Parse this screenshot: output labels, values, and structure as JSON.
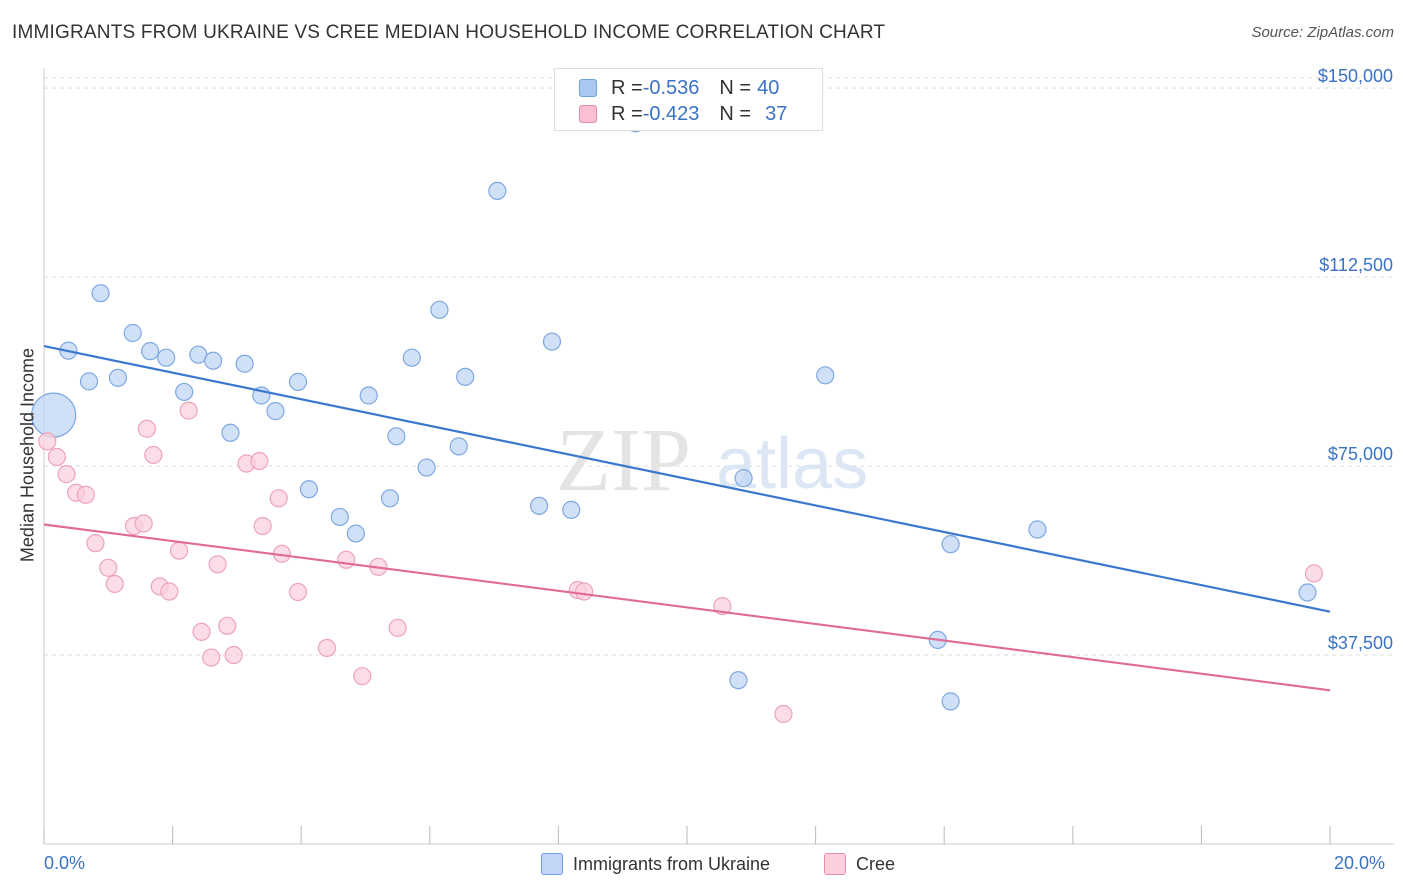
{
  "title": "IMMIGRANTS FROM UKRAINE VS CREE MEDIAN HOUSEHOLD INCOME CORRELATION CHART",
  "source": "Source: ZipAtlas.com",
  "watermark": {
    "zip": "ZIP",
    "atlas": "atlas"
  },
  "legend_top": {
    "rows": [
      {
        "r_label": "R = ",
        "r_value": "-0.536",
        "n_label": "N = ",
        "n_value": "40",
        "color": "#a8c8f0",
        "border": "#6d9ee0"
      },
      {
        "r_label": "R = ",
        "r_value": "-0.423",
        "n_label": "N = ",
        "n_value": "37",
        "color": "#f8c0d0",
        "border": "#e890aa"
      }
    ]
  },
  "legend_bottom": [
    {
      "label": "Immigrants from Ukraine",
      "color": "#c0d6f4",
      "border": "#6d9ee0"
    },
    {
      "label": "Cree",
      "color": "#fbd0dc",
      "border": "#e890aa"
    }
  ],
  "chart_data": {
    "type": "scatter",
    "xlabel": "",
    "ylabel": "Median Household Income",
    "xlim": [
      0,
      20
    ],
    "ylim": [
      0,
      152000
    ],
    "x_tick_labels": [
      "0.0%",
      "20.0%"
    ],
    "y_ticks": [
      37500,
      75000,
      112500,
      150000
    ],
    "y_tick_labels": [
      "$37,500",
      "$75,000",
      "$112,500",
      "$150,000"
    ],
    "grid": true,
    "series": [
      {
        "name": "Immigrants from Ukraine",
        "color": "#3a78d0",
        "point_fill": "#c0d6f4",
        "point_stroke": "#7ea8e2",
        "trend": {
          "x": [
            0.0,
            20.0
          ],
          "y": [
            98800,
            46100
          ]
        },
        "points": [
          {
            "x": 0.15,
            "y": 85100,
            "big": true
          },
          {
            "x": 0.38,
            "y": 97900
          },
          {
            "x": 0.7,
            "y": 91800
          },
          {
            "x": 0.88,
            "y": 109300
          },
          {
            "x": 1.15,
            "y": 92500
          },
          {
            "x": 1.38,
            "y": 101400
          },
          {
            "x": 1.65,
            "y": 97800
          },
          {
            "x": 1.9,
            "y": 96500
          },
          {
            "x": 2.18,
            "y": 89700
          },
          {
            "x": 2.4,
            "y": 97100
          },
          {
            "x": 2.63,
            "y": 95900
          },
          {
            "x": 2.9,
            "y": 81600
          },
          {
            "x": 3.12,
            "y": 95300
          },
          {
            "x": 3.38,
            "y": 89000
          },
          {
            "x": 3.6,
            "y": 85900
          },
          {
            "x": 3.95,
            "y": 91700
          },
          {
            "x": 4.12,
            "y": 70400
          },
          {
            "x": 4.6,
            "y": 64900
          },
          {
            "x": 4.85,
            "y": 61600
          },
          {
            "x": 5.05,
            "y": 89000
          },
          {
            "x": 5.38,
            "y": 68600
          },
          {
            "x": 5.48,
            "y": 80900
          },
          {
            "x": 5.72,
            "y": 96500
          },
          {
            "x": 5.95,
            "y": 74700
          },
          {
            "x": 6.15,
            "y": 106000
          },
          {
            "x": 6.45,
            "y": 78900
          },
          {
            "x": 6.55,
            "y": 92700
          },
          {
            "x": 7.05,
            "y": 129600
          },
          {
            "x": 7.7,
            "y": 67100
          },
          {
            "x": 7.9,
            "y": 99700
          },
          {
            "x": 8.2,
            "y": 66300
          },
          {
            "x": 9.2,
            "y": 143000
          },
          {
            "x": 10.8,
            "y": 32500
          },
          {
            "x": 10.88,
            "y": 72600
          },
          {
            "x": 12.15,
            "y": 93000
          },
          {
            "x": 13.9,
            "y": 40500
          },
          {
            "x": 14.1,
            "y": 59500
          },
          {
            "x": 14.1,
            "y": 28300
          },
          {
            "x": 15.45,
            "y": 62400
          },
          {
            "x": 19.65,
            "y": 49900
          }
        ]
      },
      {
        "name": "Cree",
        "color": "#e06b95",
        "point_fill": "#fbd0dc",
        "point_stroke": "#eda3bb",
        "trend": {
          "x": [
            0.0,
            20.0
          ],
          "y": [
            63400,
            30500
          ]
        },
        "points": [
          {
            "x": 0.05,
            "y": 79900
          },
          {
            "x": 0.2,
            "y": 76800
          },
          {
            "x": 0.35,
            "y": 73400
          },
          {
            "x": 0.5,
            "y": 69700
          },
          {
            "x": 0.65,
            "y": 69300
          },
          {
            "x": 0.8,
            "y": 59700
          },
          {
            "x": 1.0,
            "y": 54800
          },
          {
            "x": 1.1,
            "y": 51600
          },
          {
            "x": 1.4,
            "y": 63100
          },
          {
            "x": 1.55,
            "y": 63600
          },
          {
            "x": 1.6,
            "y": 82400
          },
          {
            "x": 1.7,
            "y": 77200
          },
          {
            "x": 1.8,
            "y": 51100
          },
          {
            "x": 1.95,
            "y": 50100
          },
          {
            "x": 2.1,
            "y": 58200
          },
          {
            "x": 2.25,
            "y": 86000
          },
          {
            "x": 2.45,
            "y": 42100
          },
          {
            "x": 2.6,
            "y": 37000
          },
          {
            "x": 2.7,
            "y": 55500
          },
          {
            "x": 2.85,
            "y": 43300
          },
          {
            "x": 2.95,
            "y": 37500
          },
          {
            "x": 3.15,
            "y": 75500
          },
          {
            "x": 3.35,
            "y": 76000
          },
          {
            "x": 3.4,
            "y": 63100
          },
          {
            "x": 3.65,
            "y": 68600
          },
          {
            "x": 3.7,
            "y": 57600
          },
          {
            "x": 3.95,
            "y": 50000
          },
          {
            "x": 4.4,
            "y": 38900
          },
          {
            "x": 4.7,
            "y": 56400
          },
          {
            "x": 4.95,
            "y": 33300
          },
          {
            "x": 5.2,
            "y": 55000
          },
          {
            "x": 5.5,
            "y": 42900
          },
          {
            "x": 8.3,
            "y": 50400
          },
          {
            "x": 8.4,
            "y": 50100
          },
          {
            "x": 10.55,
            "y": 47200
          },
          {
            "x": 11.5,
            "y": 25800
          },
          {
            "x": 19.75,
            "y": 53700
          }
        ]
      }
    ]
  }
}
